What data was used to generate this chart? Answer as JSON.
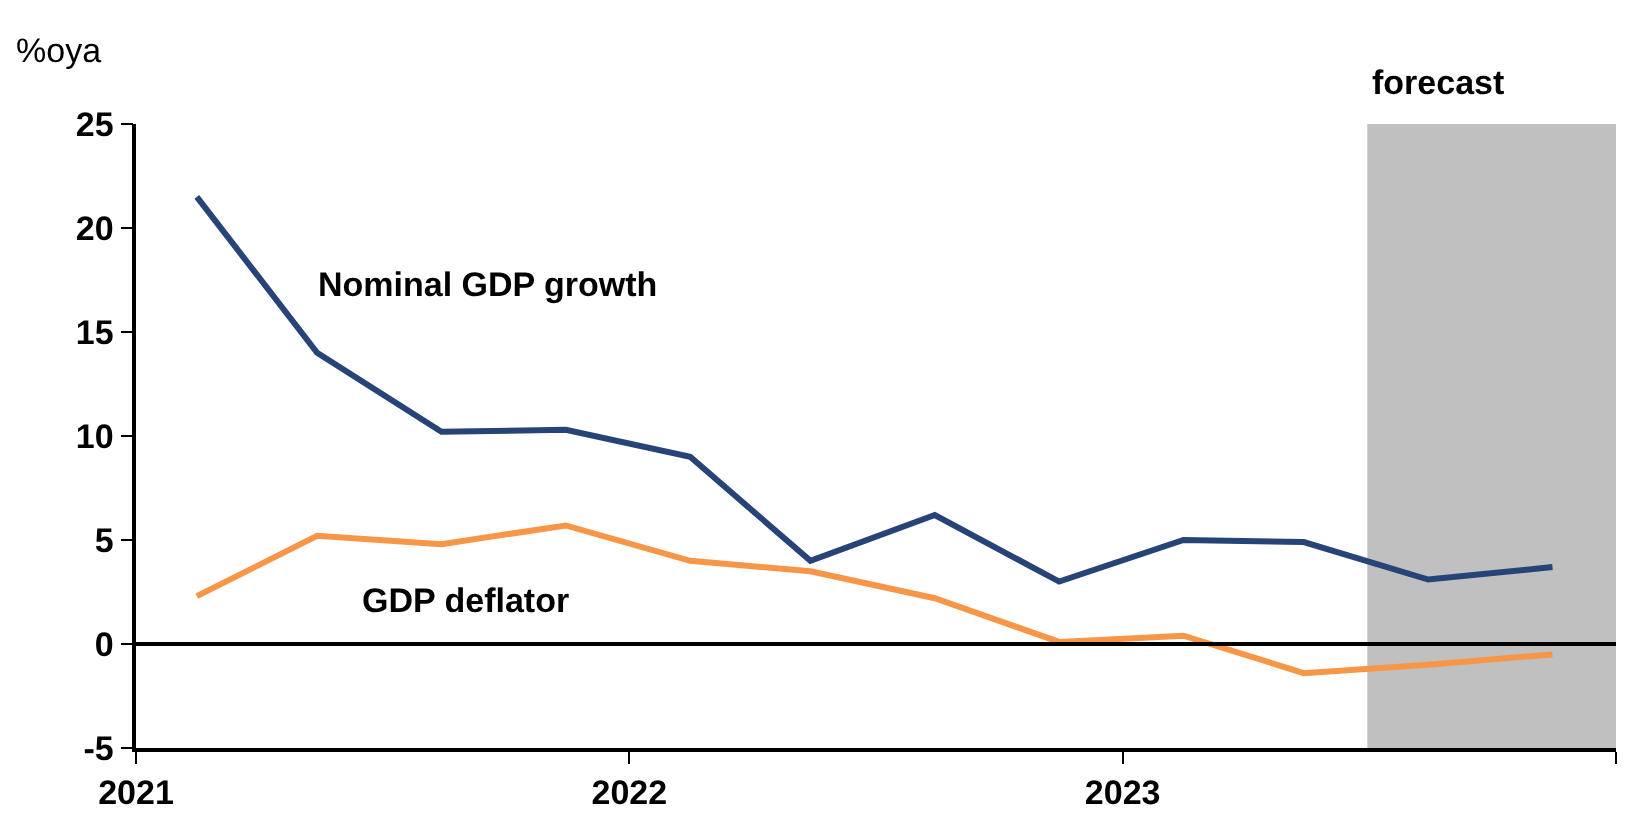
{
  "chart_data": {
    "type": "line",
    "ylabel": "%oya",
    "x": [
      "2021-02-15",
      "2021-05-15",
      "2021-08-15",
      "2021-11-15",
      "2022-02-15",
      "2022-05-15",
      "2022-08-15",
      "2022-11-15",
      "2023-02-15",
      "2023-05-15",
      "2023-08-15",
      "2023-11-15"
    ],
    "series": [
      {
        "name": "Nominal GDP growth",
        "color": "#264478",
        "values": [
          21.5,
          14,
          10.2,
          10.3,
          9,
          4,
          6.2,
          3,
          5,
          4.9,
          3.1,
          3.7
        ]
      },
      {
        "name": "GDP deflator",
        "color": "#f79646",
        "values": [
          2.3,
          5.2,
          4.8,
          5.7,
          4,
          3.5,
          2.2,
          0.1,
          0.4,
          -1.4,
          -1,
          -0.5
        ]
      }
    ],
    "xlim": [
      "2021-01-01",
      "2024-01-01"
    ],
    "xticks": [
      {
        "value": "2021-01-01",
        "label": "2021"
      },
      {
        "value": "2022-01-01",
        "label": "2022"
      },
      {
        "value": "2023-01-01",
        "label": "2023"
      },
      {
        "value": "2024-01-01",
        "label": null
      }
    ],
    "ylim": [
      -5,
      25
    ],
    "yticks": [
      -5,
      0,
      5,
      10,
      15,
      20,
      25
    ],
    "ref_lines": [
      {
        "axis": "y",
        "value": 0,
        "color": "#000000"
      }
    ],
    "bands": [
      {
        "axis": "x",
        "from": "2023-07-01",
        "to": "2024-01-01",
        "label": "forecast",
        "color": "#c0c0c0"
      }
    ],
    "grid": false,
    "legend": false,
    "marker": "none",
    "line_style": "solid"
  }
}
